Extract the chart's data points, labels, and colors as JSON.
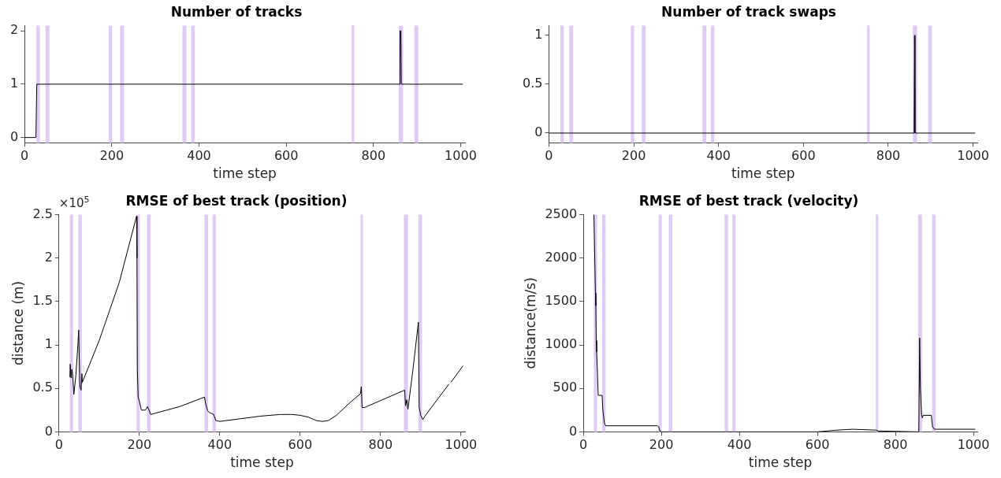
{
  "chart_data": [
    {
      "type": "line",
      "title": "Number of tracks",
      "xlabel": "time step",
      "xlim": [
        0,
        1010
      ],
      "xticks": [
        0,
        200,
        400,
        600,
        800,
        1000
      ],
      "ylim": [
        -0.1,
        2.1
      ],
      "yticks": [
        0,
        1,
        2
      ],
      "grid": false,
      "legend": false,
      "marker": "none",
      "line_style": "solid",
      "series": [
        {
          "color": "#000000",
          "x": [
            0,
            26,
            28,
            860,
            861,
            863,
            864,
            1005
          ],
          "values": [
            0,
            0,
            1,
            1,
            2,
            2,
            1,
            1
          ]
        }
      ],
      "bands": [
        {
          "axis": "x",
          "from": 27,
          "to": 35,
          "color": "#dfcbf5"
        },
        {
          "axis": "x",
          "from": 48,
          "to": 57,
          "color": "#dfcbf5"
        },
        {
          "axis": "x",
          "from": 193,
          "to": 201,
          "color": "#dfcbf5"
        },
        {
          "axis": "x",
          "from": 219,
          "to": 228,
          "color": "#dfcbf5"
        },
        {
          "axis": "x",
          "from": 362,
          "to": 371,
          "color": "#dfcbf5"
        },
        {
          "axis": "x",
          "from": 382,
          "to": 390,
          "color": "#dfcbf5"
        },
        {
          "axis": "x",
          "from": 750,
          "to": 756,
          "color": "#dfcbf5"
        },
        {
          "axis": "x",
          "from": 858,
          "to": 868,
          "color": "#dfcbf5"
        },
        {
          "axis": "x",
          "from": 894,
          "to": 903,
          "color": "#dfcbf5"
        }
      ]
    },
    {
      "type": "line",
      "title": "Number of track swaps",
      "xlabel": "time step",
      "xlim": [
        0,
        1010
      ],
      "xticks": [
        0,
        200,
        400,
        600,
        800,
        1000
      ],
      "ylim": [
        -0.1,
        1.1
      ],
      "yticks": [
        0,
        0.5,
        1
      ],
      "grid": false,
      "legend": false,
      "marker": "none",
      "line_style": "solid",
      "series": [
        {
          "color": "#000000",
          "x": [
            0,
            861,
            862,
            863,
            1005
          ],
          "values": [
            0,
            0,
            1,
            0,
            0
          ]
        }
      ],
      "bands": [
        {
          "axis": "x",
          "from": 27,
          "to": 35,
          "color": "#dfcbf5"
        },
        {
          "axis": "x",
          "from": 48,
          "to": 57,
          "color": "#dfcbf5"
        },
        {
          "axis": "x",
          "from": 193,
          "to": 201,
          "color": "#dfcbf5"
        },
        {
          "axis": "x",
          "from": 219,
          "to": 228,
          "color": "#dfcbf5"
        },
        {
          "axis": "x",
          "from": 362,
          "to": 371,
          "color": "#dfcbf5"
        },
        {
          "axis": "x",
          "from": 382,
          "to": 390,
          "color": "#dfcbf5"
        },
        {
          "axis": "x",
          "from": 750,
          "to": 756,
          "color": "#dfcbf5"
        },
        {
          "axis": "x",
          "from": 858,
          "to": 868,
          "color": "#dfcbf5"
        },
        {
          "axis": "x",
          "from": 894,
          "to": 903,
          "color": "#dfcbf5"
        }
      ]
    },
    {
      "type": "line",
      "title": "RMSE of best track (position)",
      "xlabel": "time step",
      "ylabel": "distance (m)",
      "annotations": [
        "×10$^{5}$"
      ],
      "xlim": [
        0,
        1010
      ],
      "xticks": [
        0,
        200,
        400,
        600,
        800,
        1000
      ],
      "ylim": [
        0,
        2.5
      ],
      "yticks": [
        0,
        0.5,
        1,
        1.5,
        2,
        2.5
      ],
      "grid": false,
      "legend": false,
      "marker": "none",
      "line_style": "solid",
      "series": [
        {
          "color": "#000000",
          "x": [
            27,
            28,
            30,
            32,
            34,
            37,
            42,
            47,
            49,
            52,
            55,
            57,
            58,
            100,
            150,
            193,
            194,
            195,
            197,
            200,
            205,
            215,
            220,
            225,
            228,
            300,
            362,
            365,
            370,
            375,
            380,
            385,
            390,
            400,
            450,
            500,
            550,
            580,
            600,
            620,
            640,
            655,
            670,
            690,
            720,
            750,
            752,
            754,
            760,
            820,
            860,
            862,
            865,
            868,
            880,
            894,
            896,
            900,
            905,
            910,
            970,
            972,
            975,
            1005
          ],
          "values": [
            0.63,
            0.78,
            0.62,
            0.72,
            0.66,
            0.43,
            0.65,
            1.0,
            1.17,
            0.52,
            0.48,
            0.67,
            0.57,
            1.05,
            1.72,
            2.48,
            2.0,
            0.7,
            0.4,
            0.35,
            0.25,
            0.25,
            0.29,
            0.24,
            0.2,
            0.29,
            0.4,
            0.32,
            0.24,
            0.22,
            0.21,
            0.2,
            0.13,
            0.12,
            0.15,
            0.18,
            0.2,
            0.2,
            0.19,
            0.17,
            0.13,
            0.12,
            0.13,
            0.19,
            0.32,
            0.44,
            0.52,
            0.28,
            0.28,
            0.4,
            0.48,
            0.3,
            0.37,
            0.26,
            0.7,
            1.26,
            0.28,
            0.19,
            0.14,
            0.18,
            0.55,
            null,
            0.57,
            0.76
          ]
        }
      ],
      "bands": [
        {
          "axis": "x",
          "from": 27,
          "to": 35,
          "color": "#dfcbf5"
        },
        {
          "axis": "x",
          "from": 48,
          "to": 57,
          "color": "#dfcbf5"
        },
        {
          "axis": "x",
          "from": 193,
          "to": 201,
          "color": "#dfcbf5"
        },
        {
          "axis": "x",
          "from": 219,
          "to": 228,
          "color": "#dfcbf5"
        },
        {
          "axis": "x",
          "from": 362,
          "to": 371,
          "color": "#dfcbf5"
        },
        {
          "axis": "x",
          "from": 382,
          "to": 390,
          "color": "#dfcbf5"
        },
        {
          "axis": "x",
          "from": 750,
          "to": 756,
          "color": "#dfcbf5"
        },
        {
          "axis": "x",
          "from": 858,
          "to": 868,
          "color": "#dfcbf5"
        },
        {
          "axis": "x",
          "from": 894,
          "to": 903,
          "color": "#dfcbf5"
        }
      ]
    },
    {
      "type": "line",
      "title": "RMSE of best track (velocity)",
      "xlabel": "time step",
      "ylabel": "distance(m/s)",
      "xlim": [
        0,
        1010
      ],
      "xticks": [
        0,
        200,
        400,
        600,
        800,
        1000
      ],
      "ylim": [
        0,
        2500
      ],
      "yticks": [
        0,
        500,
        1000,
        1500,
        2000,
        2500
      ],
      "grid": false,
      "legend": false,
      "marker": "none",
      "line_style": "solid",
      "series": [
        {
          "color": "#000000",
          "x": [
            27,
            31,
            32,
            33,
            34,
            36,
            38,
            48,
            50,
            54,
            57,
            190,
            193,
            196,
            200,
            370,
            600,
            650,
            690,
            750,
            756,
            858,
            860,
            862,
            864,
            867,
            869,
            871,
            892,
            895,
            900,
            1005
          ],
          "values": [
            2500,
            1600,
            1450,
            1050,
            920,
            700,
            420,
            420,
            250,
            100,
            70,
            70,
            60,
            10,
            0,
            0,
            0,
            20,
            30,
            20,
            10,
            0,
            0,
            1080,
            500,
            200,
            160,
            190,
            190,
            60,
            30,
            30
          ]
        }
      ],
      "bands": [
        {
          "axis": "x",
          "from": 27,
          "to": 35,
          "color": "#dfcbf5"
        },
        {
          "axis": "x",
          "from": 48,
          "to": 57,
          "color": "#dfcbf5"
        },
        {
          "axis": "x",
          "from": 193,
          "to": 201,
          "color": "#dfcbf5"
        },
        {
          "axis": "x",
          "from": 219,
          "to": 228,
          "color": "#dfcbf5"
        },
        {
          "axis": "x",
          "from": 362,
          "to": 371,
          "color": "#dfcbf5"
        },
        {
          "axis": "x",
          "from": 382,
          "to": 390,
          "color": "#dfcbf5"
        },
        {
          "axis": "x",
          "from": 750,
          "to": 756,
          "color": "#dfcbf5"
        },
        {
          "axis": "x",
          "from": 858,
          "to": 868,
          "color": "#dfcbf5"
        },
        {
          "axis": "x",
          "from": 894,
          "to": 903,
          "color": "#dfcbf5"
        }
      ]
    }
  ]
}
